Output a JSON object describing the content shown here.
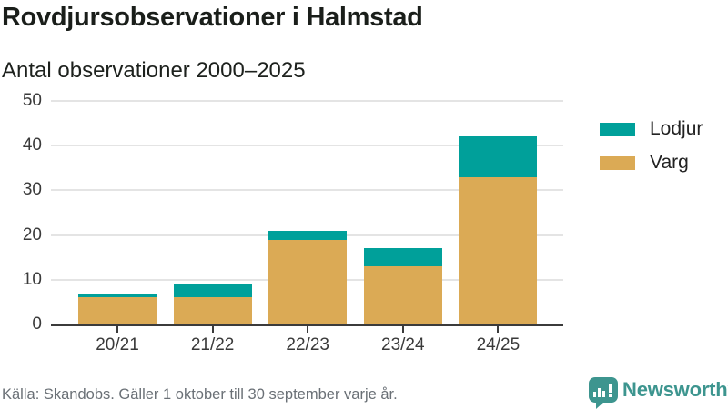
{
  "header": {
    "title": "Rovdjursobservationer i Halmstad",
    "subtitle": "Antal observationer 2000–2025"
  },
  "chart_data": {
    "type": "bar",
    "stacked": true,
    "title": "Rovdjursobservationer i Halmstad",
    "subtitle": "Antal observationer 2000–2025",
    "categories": [
      "20/21",
      "21/22",
      "22/23",
      "23/24",
      "24/25"
    ],
    "series": [
      {
        "name": "Varg",
        "color": "#dbaa55",
        "values": [
          6,
          6,
          19,
          13,
          33
        ]
      },
      {
        "name": "Lodjur",
        "color": "#00a09a",
        "values": [
          1,
          3,
          2,
          4,
          9
        ]
      }
    ],
    "totals": [
      7,
      9,
      21,
      17,
      42
    ],
    "xlabel": "",
    "ylabel": "",
    "ylim": [
      0,
      50
    ],
    "yticks": [
      0,
      10,
      20,
      30,
      40,
      50
    ],
    "grid": true,
    "legend_position": "right",
    "legend_order": [
      "Lodjur",
      "Varg"
    ]
  },
  "legend": {
    "items": [
      {
        "label": "Lodjur",
        "color": "#00a09a"
      },
      {
        "label": "Varg",
        "color": "#dbaa55"
      }
    ]
  },
  "footer": {
    "source": "Källa: Skandobs. Gäller 1 oktober till 30 september varje år.",
    "brand": "Newsworthy"
  },
  "icons": {
    "logo": "newsworthy-speech-bubble-bar-chart-icon"
  },
  "colors": {
    "teal": "#00a09a",
    "tan": "#dbaa55",
    "axis": "#3b3b3b",
    "gridline": "#e4e4e4",
    "brand_teal": "#3d958f",
    "source_gray": "#6a7076"
  }
}
